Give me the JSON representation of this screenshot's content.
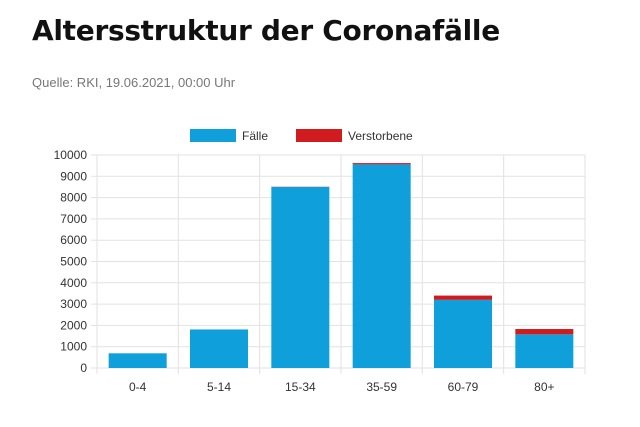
{
  "header": {
    "title": "Altersstruktur der Coronafälle",
    "source": "Quelle: RKI, 19.06.2021, 00:00 Uhr"
  },
  "colors": {
    "faelle": "#0f9fdb",
    "verstorbene": "#d01c1f",
    "grid": "#e2e2e2",
    "axis_text": "#333333"
  },
  "chart_data": {
    "type": "bar",
    "stacked": true,
    "title": "",
    "xlabel": "",
    "ylabel": "",
    "categories": [
      "0-4",
      "5-14",
      "15-34",
      "35-59",
      "60-79",
      "80+"
    ],
    "series": [
      {
        "name": "Fälle",
        "values": [
          690,
          1810,
          8500,
          9560,
          3200,
          1580
        ]
      },
      {
        "name": "Verstorbene",
        "values": [
          0,
          0,
          10,
          60,
          200,
          250
        ]
      }
    ],
    "ylim": [
      0,
      10000
    ],
    "yticks": [
      "0",
      "1000",
      "2000",
      "3000",
      "4000",
      "5000",
      "6000",
      "7000",
      "8000",
      "9000",
      "10000"
    ],
    "grid": true,
    "legend_position": "top-center"
  }
}
